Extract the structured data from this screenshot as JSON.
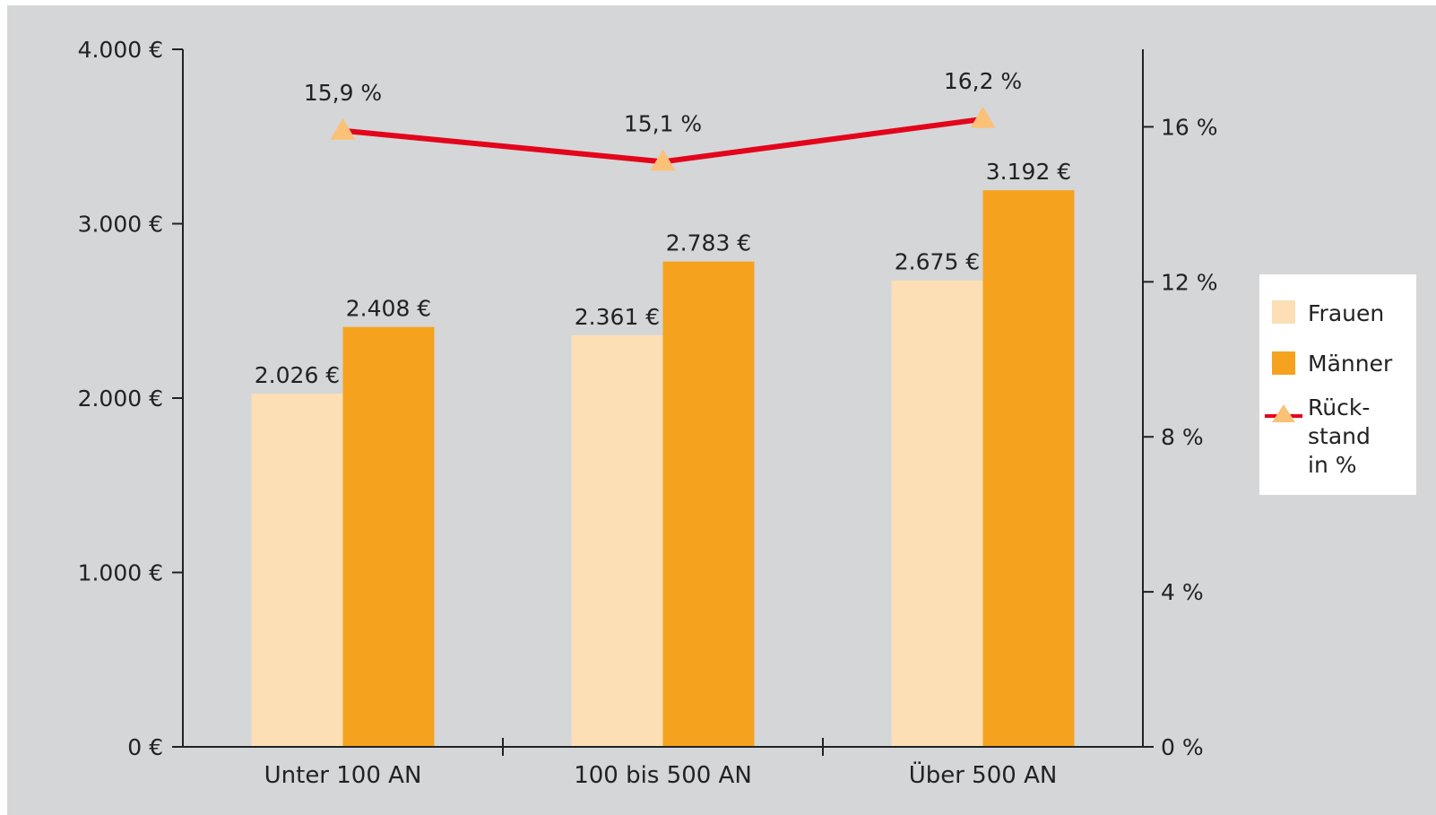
{
  "chart_data": {
    "type": "bar",
    "categories": [
      "Unter 100 AN",
      "100 bis 500 AN",
      "Über 500 AN"
    ],
    "series": [
      {
        "name": "Frauen",
        "values": [
          2026,
          2361,
          2675
        ],
        "labels": [
          "2.026 €",
          "2.361 €",
          "2.675 €"
        ],
        "color": "#FCDFB4"
      },
      {
        "name": "Männer",
        "values": [
          2408,
          2783,
          3192
        ],
        "labels": [
          "2.408 €",
          "2.783 €",
          "3.192 €"
        ],
        "color": "#F5A31F"
      }
    ],
    "line_series": {
      "name": "Rück-\nstand\nin %",
      "name_lines": [
        "Rück-",
        "stand",
        "in %"
      ],
      "values": [
        15.9,
        15.1,
        16.2
      ],
      "labels": [
        "15,9 %",
        "15,1 %",
        "16,2 %"
      ],
      "axis": "right",
      "line_color": "#E3051B",
      "marker_color": "#FBC177"
    },
    "y_left": {
      "ylim": [
        0,
        4000
      ],
      "ticks": [
        0,
        1000,
        2000,
        3000,
        4000
      ],
      "tick_labels": [
        "0 €",
        "1.000 €",
        "2.000 €",
        "3.000 €",
        "4.000 €"
      ]
    },
    "y_right": {
      "ylim": [
        0,
        18
      ],
      "ticks": [
        0,
        4,
        8,
        12,
        16
      ],
      "tick_labels": [
        "0 %",
        "4 %",
        "8 %",
        "12 %",
        "16 %"
      ]
    },
    "title": "",
    "xlabel": "",
    "ylabel": "",
    "grid": false,
    "legend": "right",
    "background_color": "#D5D6D8"
  }
}
